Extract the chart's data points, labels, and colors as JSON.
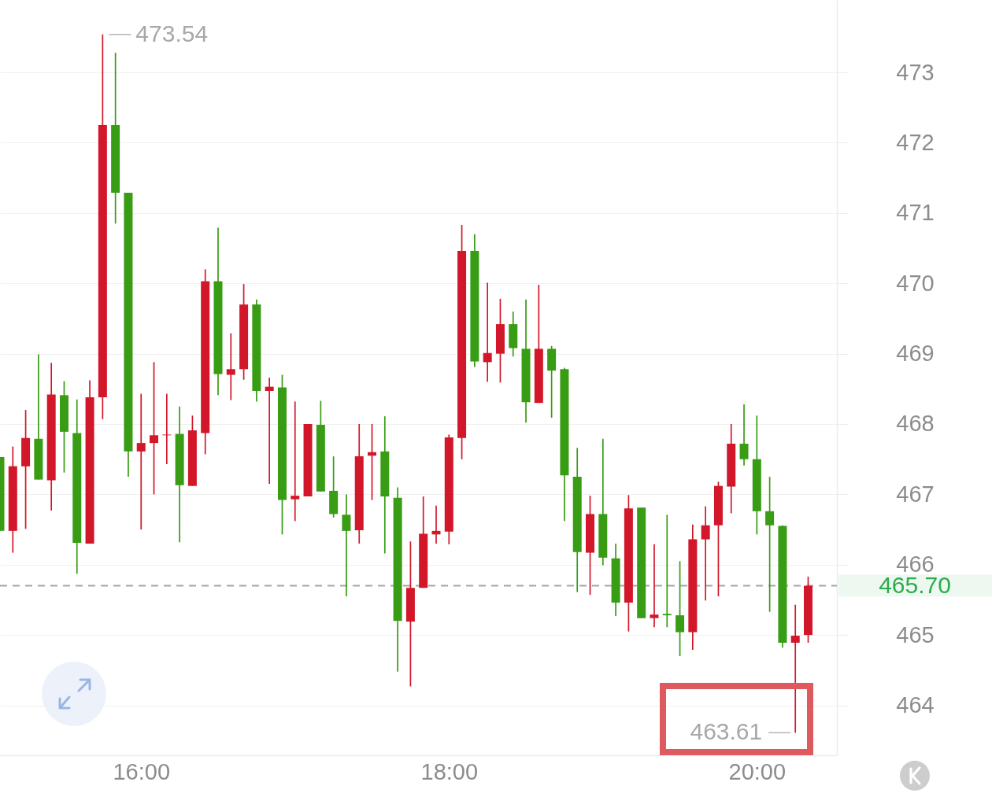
{
  "chart_data": {
    "type": "candlestick",
    "x": [
      15.0833,
      15.1667,
      15.25,
      15.3333,
      15.4167,
      15.5,
      15.5833,
      15.6667,
      15.75,
      15.8333,
      15.9167,
      16,
      16.0833,
      16.1667,
      16.25,
      16.3333,
      16.4167,
      16.5,
      16.5833,
      16.6667,
      16.75,
      16.8333,
      16.9167,
      17,
      17.0833,
      17.1667,
      17.25,
      17.3333,
      17.4167,
      17.5,
      17.5833,
      17.6667,
      17.75,
      17.8333,
      17.9167,
      18,
      18.0833,
      18.1667,
      18.25,
      18.3333,
      18.4167,
      18.5,
      18.5833,
      18.6667,
      18.75,
      18.8333,
      18.9167,
      19,
      19.0833,
      19.1667,
      19.25,
      19.3333,
      19.4167,
      19.5,
      19.5833,
      19.6667,
      19.75,
      19.8333,
      19.9167,
      20,
      20.0833,
      20.1667,
      20.25,
      20.3333
    ],
    "ohlc": [
      [
        467.53,
        467.53,
        466.48,
        466.48
      ],
      [
        466.48,
        467.68,
        466.17,
        467.4
      ],
      [
        467.4,
        468.2,
        466.51,
        467.8
      ],
      [
        467.79,
        468.99,
        467.21,
        467.21
      ],
      [
        467.2,
        468.87,
        466.77,
        468.42
      ],
      [
        468.41,
        468.61,
        467.31,
        467.89
      ],
      [
        467.87,
        468.35,
        465.87,
        466.31
      ],
      [
        466.3,
        468.62,
        466.3,
        468.38
      ],
      [
        468.38,
        473.54,
        468.07,
        472.25
      ],
      [
        472.25,
        473.28,
        470.85,
        471.29
      ],
      [
        471.29,
        471.29,
        467.25,
        467.61
      ],
      [
        467.61,
        468.43,
        466.5,
        467.73
      ],
      [
        467.73,
        468.88,
        467.0,
        467.84
      ],
      [
        467.84,
        468.43,
        467.43,
        467.85
      ],
      [
        467.86,
        468.25,
        466.32,
        467.13
      ],
      [
        467.12,
        468.12,
        467.12,
        467.91
      ],
      [
        467.87,
        470.2,
        467.57,
        470.03
      ],
      [
        470.03,
        470.79,
        468.41,
        468.71
      ],
      [
        468.7,
        469.29,
        468.34,
        468.78
      ],
      [
        468.78,
        469.99,
        468.63,
        469.7
      ],
      [
        469.7,
        469.77,
        468.32,
        468.47
      ],
      [
        468.47,
        468.66,
        467.15,
        468.53
      ],
      [
        468.52,
        468.7,
        466.43,
        466.92
      ],
      [
        466.93,
        468.32,
        466.62,
        466.98
      ],
      [
        466.97,
        468.0,
        466.97,
        468.0
      ],
      [
        467.99,
        468.33,
        467.04,
        467.04
      ],
      [
        467.05,
        467.54,
        466.67,
        466.72
      ],
      [
        466.71,
        467.0,
        465.55,
        466.48
      ],
      [
        466.49,
        468.0,
        466.3,
        467.54
      ],
      [
        467.55,
        468.0,
        466.92,
        467.6
      ],
      [
        467.61,
        468.11,
        466.16,
        466.97
      ],
      [
        466.95,
        467.1,
        464.48,
        465.2
      ],
      [
        465.19,
        466.33,
        464.27,
        465.67
      ],
      [
        465.67,
        466.97,
        465.67,
        466.44
      ],
      [
        466.43,
        466.84,
        466.3,
        466.48
      ],
      [
        466.47,
        467.85,
        466.29,
        467.81
      ],
      [
        467.8,
        470.83,
        467.5,
        470.46
      ],
      [
        470.46,
        470.7,
        468.81,
        468.89
      ],
      [
        468.88,
        470.01,
        468.6,
        469.01
      ],
      [
        469.0,
        469.78,
        468.59,
        469.42
      ],
      [
        469.42,
        469.6,
        468.96,
        469.08
      ],
      [
        469.07,
        469.77,
        468.02,
        468.31
      ],
      [
        468.3,
        469.98,
        468.3,
        469.07
      ],
      [
        469.07,
        469.11,
        468.09,
        468.76
      ],
      [
        468.78,
        468.8,
        466.62,
        467.27
      ],
      [
        467.25,
        467.66,
        465.61,
        466.18
      ],
      [
        466.17,
        466.98,
        465.57,
        466.72
      ],
      [
        466.72,
        467.79,
        465.99,
        466.1
      ],
      [
        466.09,
        466.3,
        465.27,
        465.46
      ],
      [
        465.46,
        466.99,
        465.05,
        466.8
      ],
      [
        466.81,
        466.81,
        465.24,
        465.24
      ],
      [
        465.24,
        466.29,
        465.11,
        465.29
      ],
      [
        465.3,
        466.71,
        465.11,
        465.28
      ],
      [
        465.28,
        466.05,
        464.7,
        465.04
      ],
      [
        465.04,
        466.57,
        464.79,
        466.36
      ],
      [
        466.36,
        466.83,
        465.49,
        466.56
      ],
      [
        466.56,
        467.18,
        465.55,
        467.12
      ],
      [
        467.11,
        468.0,
        466.73,
        467.72
      ],
      [
        467.72,
        468.28,
        467.41,
        467.5
      ],
      [
        467.5,
        468.12,
        466.43,
        466.76
      ],
      [
        466.76,
        467.25,
        465.33,
        466.56
      ],
      [
        466.55,
        466.56,
        464.82,
        464.89
      ],
      [
        464.89,
        465.43,
        463.61,
        464.99
      ],
      [
        465.0,
        465.83,
        464.89,
        465.7
      ]
    ],
    "colors": [
      "#389c14",
      "#d2172a",
      "#d2172a",
      "#389c14",
      "#d2172a",
      "#389c14",
      "#389c14",
      "#d2172a",
      "#d2172a",
      "#389c14",
      "#389c14",
      "#d2172a",
      "#d2172a",
      "#d2172a",
      "#389c14",
      "#d2172a",
      "#d2172a",
      "#389c14",
      "#d2172a",
      "#d2172a",
      "#389c14",
      "#d2172a",
      "#389c14",
      "#d2172a",
      "#d2172a",
      "#389c14",
      "#389c14",
      "#389c14",
      "#d2172a",
      "#d2172a",
      "#389c14",
      "#389c14",
      "#d2172a",
      "#d2172a",
      "#d2172a",
      "#d2172a",
      "#d2172a",
      "#389c14",
      "#d2172a",
      "#d2172a",
      "#389c14",
      "#389c14",
      "#d2172a",
      "#389c14",
      "#389c14",
      "#389c14",
      "#d2172a",
      "#389c14",
      "#389c14",
      "#d2172a",
      "#389c14",
      "#d2172a",
      "#389c14",
      "#389c14",
      "#d2172a",
      "#d2172a",
      "#d2172a",
      "#d2172a",
      "#389c14",
      "#389c14",
      "#389c14",
      "#389c14",
      "#d2172a",
      "#d2172a"
    ],
    "xlim": [
      15.0833,
      20.52
    ],
    "xticks": [
      {
        "value": 16,
        "label": "16:00"
      },
      {
        "value": 18,
        "label": "18:00"
      },
      {
        "value": 20,
        "label": "20:00"
      }
    ],
    "ylim": [
      463.29,
      474.03
    ],
    "yticks": [
      464,
      465,
      466,
      467,
      468,
      469,
      470,
      471,
      472,
      473
    ],
    "grid": "y",
    "ref_lines": [
      {
        "axis": "y",
        "value": 465.7,
        "label": "465.70",
        "color": "#a6a6a6",
        "line_style": "dashed"
      }
    ],
    "annotations": [
      {
        "text": "473.54",
        "x": 15.75,
        "y": 473.54
      },
      {
        "text": "463.61",
        "x": 20.25,
        "y": 463.61
      }
    ]
  }
}
